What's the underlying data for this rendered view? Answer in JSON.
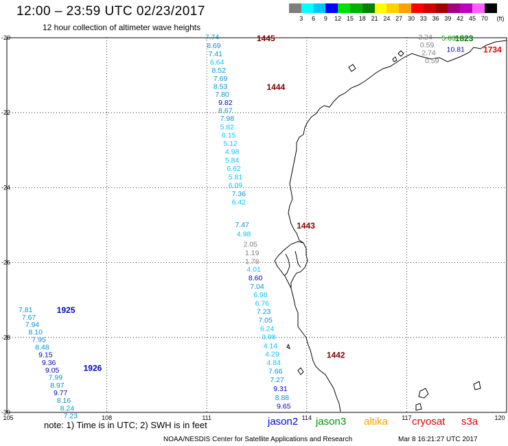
{
  "header": {
    "title": "12:00 – 23:59 UTC 02/23/2017",
    "subtitle": "12 hour collection of altimeter wave heights"
  },
  "colorbar": {
    "unit_label": "(ft)",
    "labels": [
      "3",
      "6",
      "9",
      "12",
      "15",
      "18",
      "21",
      "24",
      "27",
      "30",
      "33",
      "36",
      "39",
      "42",
      "45",
      "70"
    ],
    "colors": [
      "#7f7f7f",
      "#00ffff",
      "#00c8ff",
      "#0000ff",
      "#00e000",
      "#00b000",
      "#008000",
      "#ffff00",
      "#ffd000",
      "#ffa000",
      "#ff0000",
      "#d00000",
      "#a00000",
      "#a0007f",
      "#c000c0",
      "#ff60ff",
      "#000000"
    ]
  },
  "axes": {
    "lon_labels": [
      "105",
      "108",
      "111",
      "114",
      "117",
      "120"
    ],
    "lat_labels": [
      "-20",
      "-22",
      "-24",
      "-26",
      "-28",
      "-30"
    ],
    "lon_range": [
      105,
      120
    ],
    "lat_range": [
      -30,
      -20
    ],
    "grid": true
  },
  "passes": [
    {
      "label": "1445",
      "lon": 112.5,
      "lat": -20.0,
      "color": "#800000"
    },
    {
      "label": "1444",
      "lon": 112.8,
      "lat": -21.3,
      "color": "#800000"
    },
    {
      "label": "1443",
      "lon": 113.7,
      "lat": -25.0,
      "color": "#800000"
    },
    {
      "label": "1442",
      "lon": 114.6,
      "lat": -28.45,
      "color": "#800000"
    },
    {
      "label": "1823",
      "lon": 118.45,
      "lat": -20.0,
      "color": "#008000"
    },
    {
      "label": "1734",
      "lon": 119.3,
      "lat": -20.3,
      "color": "#e00000"
    },
    {
      "label": "1925",
      "lon": 106.5,
      "lat": -27.25,
      "color": "#0000c0"
    },
    {
      "label": "1926",
      "lon": 107.3,
      "lat": -28.8,
      "color": "#0000c0"
    }
  ],
  "wave_heights": [
    {
      "v": "7.74",
      "lon": 110.95,
      "lat": -19.97,
      "c": "#0095d0"
    },
    {
      "v": "8.69",
      "lon": 111.0,
      "lat": -20.2,
      "c": "#0095d0"
    },
    {
      "v": "7.41",
      "lon": 111.05,
      "lat": -20.42,
      "c": "#0095d0"
    },
    {
      "v": "6.64",
      "lon": 111.1,
      "lat": -20.64,
      "c": "#00c8ff"
    },
    {
      "v": "8.52",
      "lon": 111.15,
      "lat": -20.86,
      "c": "#0095d0"
    },
    {
      "v": "7.69",
      "lon": 111.2,
      "lat": -21.08,
      "c": "#0095d0"
    },
    {
      "v": "8.53",
      "lon": 111.2,
      "lat": -21.29,
      "c": "#0095d0"
    },
    {
      "v": "7.80",
      "lon": 111.25,
      "lat": -21.5,
      "c": "#0095d0"
    },
    {
      "v": "9.82",
      "lon": 111.35,
      "lat": -21.72,
      "c": "#0000c0"
    },
    {
      "v": "8.67",
      "lon": 111.35,
      "lat": -21.93,
      "c": "#0095d0"
    },
    {
      "v": "7.98",
      "lon": 111.4,
      "lat": -22.14,
      "c": "#0095d0"
    },
    {
      "v": "5.82",
      "lon": 111.4,
      "lat": -22.37,
      "c": "#00c8ff"
    },
    {
      "v": "6.15",
      "lon": 111.45,
      "lat": -22.59,
      "c": "#00c8ff"
    },
    {
      "v": "5.12",
      "lon": 111.5,
      "lat": -22.81,
      "c": "#00c8ff"
    },
    {
      "v": "4.98",
      "lon": 111.55,
      "lat": -23.03,
      "c": "#00c8ff"
    },
    {
      "v": "5.84",
      "lon": 111.55,
      "lat": -23.26,
      "c": "#00c8ff"
    },
    {
      "v": "6.62",
      "lon": 111.6,
      "lat": -23.48,
      "c": "#00c8ff"
    },
    {
      "v": "5.81",
      "lon": 111.65,
      "lat": -23.71,
      "c": "#00c8ff"
    },
    {
      "v": "6.09",
      "lon": 111.65,
      "lat": -23.93,
      "c": "#00c8ff"
    },
    {
      "v": "7.36",
      "lon": 111.75,
      "lat": -24.16,
      "c": "#0095d0"
    },
    {
      "v": "6.42",
      "lon": 111.75,
      "lat": -24.38,
      "c": "#00c8ff"
    },
    {
      "v": "7.47",
      "lon": 111.85,
      "lat": -24.98,
      "c": "#0095d0"
    },
    {
      "v": "4.98",
      "lon": 111.9,
      "lat": -25.23,
      "c": "#00c8ff"
    },
    {
      "v": "2.05",
      "lon": 112.1,
      "lat": -25.5,
      "c": "#7f7f7f"
    },
    {
      "v": "1.19",
      "lon": 112.15,
      "lat": -25.73,
      "c": "#7f7f7f"
    },
    {
      "v": "1.78",
      "lon": 112.15,
      "lat": -25.96,
      "c": "#7f7f7f"
    },
    {
      "v": "4.01",
      "lon": 112.2,
      "lat": -26.17,
      "c": "#00c8ff"
    },
    {
      "v": "8.60",
      "lon": 112.25,
      "lat": -26.4,
      "c": "#0000c0"
    },
    {
      "v": "7.04",
      "lon": 112.3,
      "lat": -26.63,
      "c": "#0095d0"
    },
    {
      "v": "6.98",
      "lon": 112.4,
      "lat": -26.85,
      "c": "#00c8ff"
    },
    {
      "v": "6.76",
      "lon": 112.45,
      "lat": -27.08,
      "c": "#00c8ff"
    },
    {
      "v": "7.23",
      "lon": 112.5,
      "lat": -27.3,
      "c": "#0095d0"
    },
    {
      "v": "7.05",
      "lon": 112.55,
      "lat": -27.53,
      "c": "#0095d0"
    },
    {
      "v": "6.24",
      "lon": 112.6,
      "lat": -27.76,
      "c": "#00c8ff"
    },
    {
      "v": "3.98",
      "lon": 112.65,
      "lat": -27.98,
      "c": "#00c8ff"
    },
    {
      "v": "4.14",
      "lon": 112.7,
      "lat": -28.21,
      "c": "#00c8ff"
    },
    {
      "v": "4.29",
      "lon": 112.75,
      "lat": -28.43,
      "c": "#00c8ff"
    },
    {
      "v": "4.84",
      "lon": 112.8,
      "lat": -28.66,
      "c": "#00c8ff"
    },
    {
      "v": "7.66",
      "lon": 112.85,
      "lat": -28.89,
      "c": "#0095d0"
    },
    {
      "v": "7.27",
      "lon": 112.9,
      "lat": -29.12,
      "c": "#0095d0"
    },
    {
      "v": "9.31",
      "lon": 113.0,
      "lat": -29.36,
      "c": "#0000c0"
    },
    {
      "v": "8.88",
      "lon": 113.05,
      "lat": -29.6,
      "c": "#0095d0"
    },
    {
      "v": "9.65",
      "lon": 113.1,
      "lat": -29.83,
      "c": "#0000c0"
    },
    {
      "v": "2.24",
      "lon": 117.35,
      "lat": -19.97,
      "c": "#7f7f7f"
    },
    {
      "v": "0.59",
      "lon": 117.4,
      "lat": -20.18,
      "c": "#7f7f7f"
    },
    {
      "v": "2.74",
      "lon": 117.45,
      "lat": -20.39,
      "c": "#7f7f7f"
    },
    {
      "v": "0.59",
      "lon": 117.55,
      "lat": -20.6,
      "c": "#7f7f7f"
    },
    {
      "v": "5.83",
      "lon": 118.05,
      "lat": -20.0,
      "c": "#00a000"
    },
    {
      "v": "10.81",
      "lon": 118.2,
      "lat": -20.3,
      "c": "#0000c0"
    },
    {
      "v": "7.81",
      "lon": 105.35,
      "lat": -27.25,
      "c": "#0095d0"
    },
    {
      "v": "7.67",
      "lon": 105.45,
      "lat": -27.45,
      "c": "#0095d0"
    },
    {
      "v": "7.94",
      "lon": 105.55,
      "lat": -27.65,
      "c": "#0095d0"
    },
    {
      "v": "8.10",
      "lon": 105.65,
      "lat": -27.85,
      "c": "#0095d0"
    },
    {
      "v": "7.95",
      "lon": 105.75,
      "lat": -28.05,
      "c": "#0095d0"
    },
    {
      "v": "8.48",
      "lon": 105.85,
      "lat": -28.25,
      "c": "#0095d0"
    },
    {
      "v": "9.15",
      "lon": 105.95,
      "lat": -28.45,
      "c": "#0000c0"
    },
    {
      "v": "9.36",
      "lon": 106.05,
      "lat": -28.66,
      "c": "#0000c0"
    },
    {
      "v": "9.05",
      "lon": 106.15,
      "lat": -28.86,
      "c": "#0000c0"
    },
    {
      "v": "7.99",
      "lon": 106.25,
      "lat": -29.06,
      "c": "#0095d0"
    },
    {
      "v": "8.97",
      "lon": 106.3,
      "lat": -29.27,
      "c": "#0095d0"
    },
    {
      "v": "9.77",
      "lon": 106.4,
      "lat": -29.47,
      "c": "#0000c0"
    },
    {
      "v": "8.16",
      "lon": 106.5,
      "lat": -29.67,
      "c": "#0095d0"
    },
    {
      "v": "8.24",
      "lon": 106.6,
      "lat": -29.88,
      "c": "#0095d0"
    },
    {
      "v": "7.23",
      "lon": 106.7,
      "lat": -30.08,
      "c": "#0095d0"
    }
  ],
  "footer": {
    "note": "note:  1) Time is in UTC; 2) SWH is in feet",
    "credit": "NOAA/NESDIS Center for Satellite Applications and Research",
    "timestamp": "Mar  8 16:21:27 UTC 2017"
  },
  "satellites": [
    {
      "name": "jason2",
      "color": "#0000e0"
    },
    {
      "name": "jason3",
      "color": "#009000"
    },
    {
      "name": "altika",
      "color": "#ffa000"
    },
    {
      "name": "cryosat",
      "color": "#e00000"
    },
    {
      "name": "s3a",
      "color": "#e00000"
    }
  ]
}
